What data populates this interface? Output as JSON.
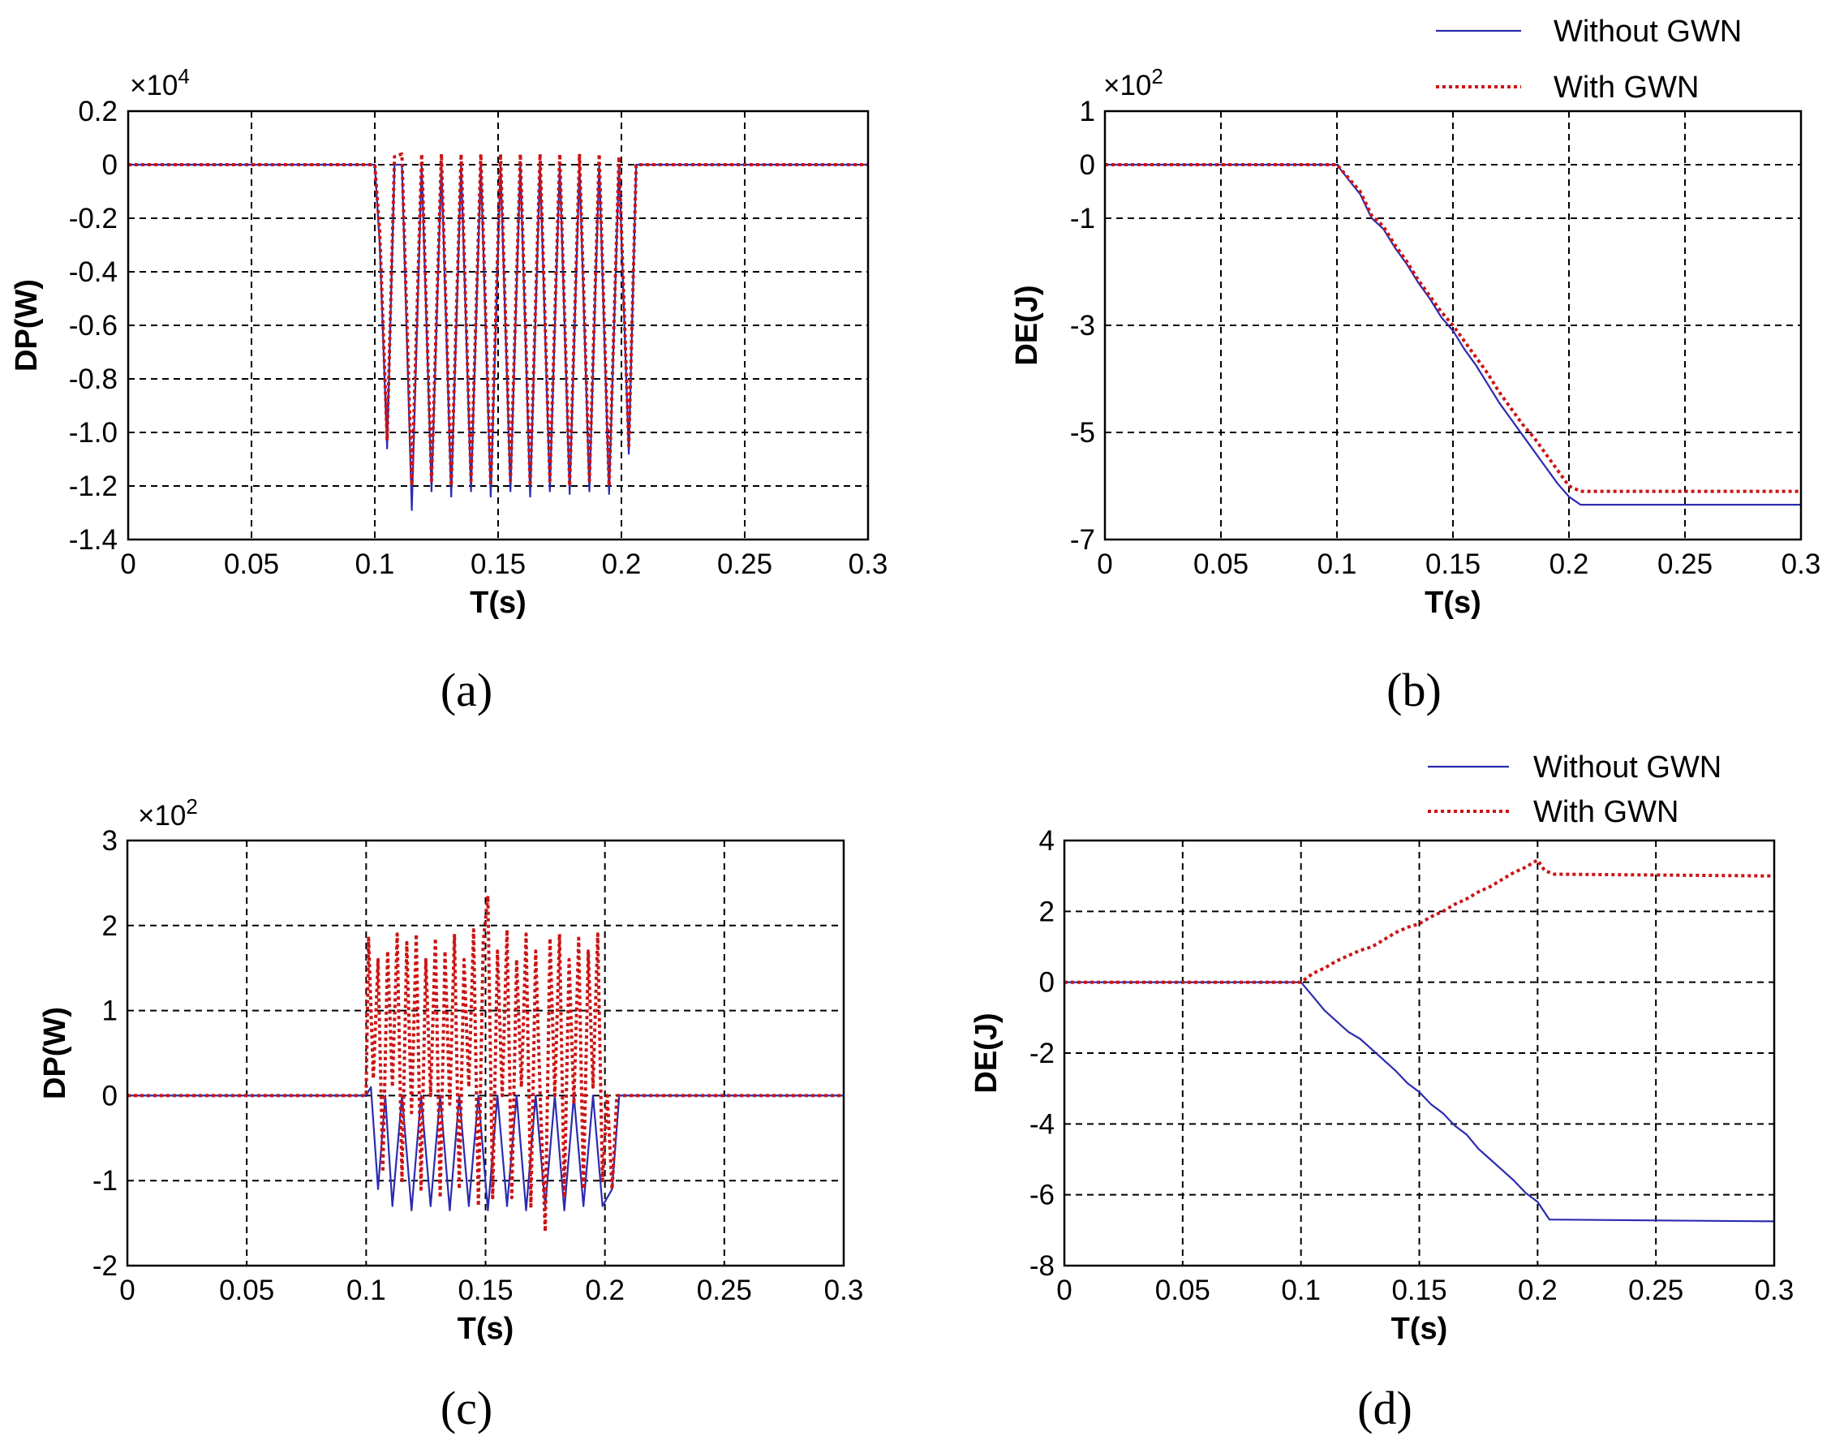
{
  "colors": {
    "without": "#2b2bb0",
    "with": "#cc1414"
  },
  "chart_data": [
    {
      "type": "line",
      "panel": "a",
      "caption": "(a)",
      "xlabel": "T(s)",
      "ylabel": "DP(W)",
      "multiplier": "×10",
      "multiplier_exp": "4",
      "xlim": [
        0,
        0.3
      ],
      "ylim": [
        -1.4,
        0.2
      ],
      "xticks": [
        0,
        0.05,
        0.1,
        0.15,
        0.2,
        0.25,
        0.3
      ],
      "xtick_labels": [
        "0",
        "0.05",
        "0.1",
        "0.15",
        "0.2",
        "0.25",
        "0.3"
      ],
      "yticks": [
        0.2,
        0,
        -0.2,
        -0.4,
        -0.6,
        -0.8,
        -1.0,
        -1.2,
        -1.4
      ],
      "ytick_labels": [
        "0.2",
        "0",
        "-0.2",
        "-0.4",
        "-0.6",
        "-0.8",
        "-1.0",
        "-1.2",
        "-1.4"
      ],
      "legend": null,
      "series": [
        {
          "name": "Without GWN",
          "style": "solid",
          "x": [
            0,
            0.1,
            0.102,
            0.105,
            0.108,
            0.111,
            0.115,
            0.119,
            0.123,
            0.127,
            0.131,
            0.135,
            0.139,
            0.143,
            0.147,
            0.151,
            0.155,
            0.159,
            0.163,
            0.167,
            0.171,
            0.175,
            0.179,
            0.183,
            0.187,
            0.191,
            0.195,
            0.199,
            0.203,
            0.206,
            0.208,
            0.3
          ],
          "y": [
            0,
            0,
            -0.3,
            -1.06,
            0,
            0,
            -1.29,
            0,
            -1.22,
            0,
            -1.24,
            0,
            -1.22,
            0,
            -1.24,
            0,
            -1.22,
            0,
            -1.24,
            0,
            -1.22,
            0,
            -1.23,
            0,
            -1.22,
            0,
            -1.23,
            0,
            -1.08,
            0,
            0,
            0
          ]
        },
        {
          "name": "With GWN",
          "style": "dotted",
          "x": [
            0,
            0.1,
            0.102,
            0.105,
            0.108,
            0.111,
            0.115,
            0.119,
            0.123,
            0.127,
            0.131,
            0.135,
            0.139,
            0.143,
            0.147,
            0.151,
            0.155,
            0.159,
            0.163,
            0.167,
            0.171,
            0.175,
            0.179,
            0.183,
            0.187,
            0.191,
            0.195,
            0.199,
            0.203,
            0.206,
            0.208,
            0.3
          ],
          "y": [
            0,
            0,
            -0.25,
            -1.03,
            0.03,
            0.04,
            -1.2,
            0.04,
            -1.18,
            0.04,
            -1.2,
            0.04,
            -1.18,
            0.04,
            -1.2,
            0.04,
            -1.18,
            0.04,
            -1.2,
            0.04,
            -1.18,
            0.04,
            -1.2,
            0.04,
            -1.18,
            0.04,
            -1.2,
            0.03,
            -1.05,
            0,
            0,
            0
          ]
        }
      ]
    },
    {
      "type": "line",
      "panel": "b",
      "caption": "(b)",
      "xlabel": "T(s)",
      "ylabel": "DE(J)",
      "multiplier": "×10",
      "multiplier_exp": "2",
      "xlim": [
        0,
        0.3
      ],
      "ylim": [
        -7,
        1
      ],
      "xticks": [
        0,
        0.05,
        0.1,
        0.15,
        0.2,
        0.25,
        0.3
      ],
      "xtick_labels": [
        "0",
        "0.05",
        "0.1",
        "0.15",
        "0.2",
        "0.25",
        "0.3"
      ],
      "yticks": [
        1,
        0,
        -1,
        -3,
        -5,
        -7
      ],
      "ytick_labels": [
        "1",
        "0",
        "-1",
        "-3",
        "-5",
        "-7"
      ],
      "legend": [
        "Without GWN",
        "With GWN"
      ],
      "series": [
        {
          "name": "Without GWN",
          "style": "solid",
          "x": [
            0,
            0.1,
            0.105,
            0.11,
            0.115,
            0.12,
            0.125,
            0.13,
            0.135,
            0.14,
            0.145,
            0.15,
            0.155,
            0.16,
            0.165,
            0.17,
            0.175,
            0.18,
            0.185,
            0.19,
            0.195,
            0.2,
            0.205,
            0.3
          ],
          "y": [
            0,
            0,
            -0.28,
            -0.55,
            -1.0,
            -1.2,
            -1.55,
            -1.85,
            -2.2,
            -2.5,
            -2.85,
            -3.1,
            -3.45,
            -3.75,
            -4.1,
            -4.45,
            -4.75,
            -5.05,
            -5.35,
            -5.65,
            -5.95,
            -6.2,
            -6.35,
            -6.35
          ]
        },
        {
          "name": "With GWN",
          "style": "dotted",
          "x": [
            0,
            0.1,
            0.105,
            0.11,
            0.115,
            0.12,
            0.125,
            0.13,
            0.135,
            0.14,
            0.145,
            0.15,
            0.155,
            0.16,
            0.165,
            0.17,
            0.175,
            0.18,
            0.185,
            0.19,
            0.195,
            0.2,
            0.205,
            0.3
          ],
          "y": [
            0,
            0,
            -0.25,
            -0.5,
            -0.95,
            -1.15,
            -1.5,
            -1.8,
            -2.15,
            -2.45,
            -2.75,
            -3.0,
            -3.3,
            -3.6,
            -3.9,
            -4.25,
            -4.55,
            -4.85,
            -5.1,
            -5.4,
            -5.7,
            -6.0,
            -6.1,
            -6.1
          ]
        }
      ]
    },
    {
      "type": "line",
      "panel": "c",
      "caption": "(c)",
      "xlabel": "T(s)",
      "ylabel": "DP(W)",
      "multiplier": "×10",
      "multiplier_exp": "2",
      "xlim": [
        0,
        0.3
      ],
      "ylim": [
        -2,
        3
      ],
      "xticks": [
        0,
        0.05,
        0.1,
        0.15,
        0.2,
        0.25,
        0.3
      ],
      "xtick_labels": [
        "0",
        "0.05",
        "0.1",
        "0.15",
        "0.2",
        "0.25",
        "0.3"
      ],
      "yticks": [
        3,
        2,
        1,
        0,
        -1,
        -2
      ],
      "ytick_labels": [
        "3",
        "2",
        "1",
        "0",
        "-1",
        "-2"
      ],
      "legend": null,
      "series": [
        {
          "name": "Without GWN",
          "style": "solid",
          "x": [
            0,
            0.1,
            0.102,
            0.105,
            0.108,
            0.111,
            0.115,
            0.119,
            0.123,
            0.127,
            0.131,
            0.135,
            0.139,
            0.143,
            0.147,
            0.151,
            0.155,
            0.159,
            0.163,
            0.167,
            0.171,
            0.175,
            0.179,
            0.183,
            0.187,
            0.191,
            0.195,
            0.199,
            0.203,
            0.206,
            0.3
          ],
          "y": [
            0,
            0,
            0.1,
            -1.1,
            0,
            -1.3,
            0,
            -1.35,
            0,
            -1.3,
            0,
            -1.35,
            0,
            -1.3,
            0,
            -1.35,
            0,
            -1.3,
            0,
            -1.35,
            0,
            -1.3,
            0,
            -1.35,
            0,
            -1.3,
            0,
            -1.3,
            -1.1,
            0,
            0
          ]
        },
        {
          "name": "With GWN",
          "style": "dotted",
          "x": [
            0,
            0.1,
            0.101,
            0.103,
            0.105,
            0.107,
            0.109,
            0.111,
            0.113,
            0.115,
            0.117,
            0.119,
            0.121,
            0.123,
            0.125,
            0.127,
            0.129,
            0.131,
            0.133,
            0.135,
            0.137,
            0.139,
            0.141,
            0.143,
            0.145,
            0.147,
            0.149,
            0.151,
            0.153,
            0.155,
            0.157,
            0.159,
            0.161,
            0.163,
            0.165,
            0.167,
            0.169,
            0.171,
            0.173,
            0.175,
            0.177,
            0.179,
            0.181,
            0.183,
            0.185,
            0.187,
            0.189,
            0.191,
            0.193,
            0.195,
            0.197,
            0.199,
            0.201,
            0.203,
            0.205,
            0.3
          ],
          "y": [
            0,
            0,
            1.85,
            0.2,
            1.6,
            -0.9,
            1.7,
            0.1,
            1.9,
            -1.0,
            1.8,
            -0.2,
            1.9,
            -1.1,
            1.6,
            0.0,
            1.85,
            -1.2,
            1.7,
            -0.1,
            1.9,
            -1.1,
            1.6,
            0.1,
            1.95,
            -1.3,
            1.8,
            2.35,
            -1.2,
            1.7,
            0.0,
            1.95,
            -1.2,
            1.6,
            0.1,
            1.9,
            -1.3,
            1.7,
            -0.1,
            -1.6,
            1.85,
            0.0,
            1.9,
            -1.2,
            1.6,
            -0.1,
            1.85,
            -1.1,
            1.7,
            0.1,
            1.9,
            -1.0,
            0.0,
            -1.1,
            0.0,
            0
          ]
        }
      ]
    },
    {
      "type": "line",
      "panel": "d",
      "caption": "(d)",
      "xlabel": "T(s)",
      "ylabel": "DE(J)",
      "multiplier": "",
      "multiplier_exp": "",
      "xlim": [
        0,
        0.3
      ],
      "ylim": [
        -8,
        4
      ],
      "xticks": [
        0,
        0.05,
        0.1,
        0.15,
        0.2,
        0.25,
        0.3
      ],
      "xtick_labels": [
        "0",
        "0.05",
        "0.1",
        "0.15",
        "0.2",
        "0.25",
        "0.3"
      ],
      "yticks": [
        4,
        2,
        0,
        -2,
        -4,
        -6,
        -8
      ],
      "ytick_labels": [
        "4",
        "2",
        "0",
        "-2",
        "-4",
        "-6",
        "-8"
      ],
      "legend": [
        "Without GWN",
        "With GWN"
      ],
      "series": [
        {
          "name": "Without GWN",
          "style": "solid",
          "x": [
            0,
            0.1,
            0.105,
            0.11,
            0.115,
            0.12,
            0.125,
            0.13,
            0.135,
            0.14,
            0.145,
            0.15,
            0.155,
            0.16,
            0.165,
            0.17,
            0.175,
            0.18,
            0.185,
            0.19,
            0.195,
            0.2,
            0.205,
            0.3
          ],
          "y": [
            0,
            0,
            -0.4,
            -0.8,
            -1.1,
            -1.4,
            -1.6,
            -1.9,
            -2.2,
            -2.5,
            -2.85,
            -3.1,
            -3.45,
            -3.7,
            -4.05,
            -4.3,
            -4.7,
            -5.0,
            -5.3,
            -5.6,
            -5.95,
            -6.2,
            -6.7,
            -6.75
          ]
        },
        {
          "name": "With GWN",
          "style": "dotted",
          "x": [
            0,
            0.1,
            0.105,
            0.11,
            0.115,
            0.12,
            0.125,
            0.13,
            0.135,
            0.14,
            0.145,
            0.15,
            0.155,
            0.16,
            0.165,
            0.17,
            0.175,
            0.18,
            0.185,
            0.19,
            0.195,
            0.2,
            0.203,
            0.207,
            0.3
          ],
          "y": [
            0,
            0,
            0.25,
            0.4,
            0.6,
            0.75,
            0.9,
            1.0,
            1.2,
            1.4,
            1.55,
            1.65,
            1.85,
            2.0,
            2.2,
            2.35,
            2.55,
            2.7,
            2.9,
            3.1,
            3.25,
            3.45,
            3.15,
            3.05,
            3.0
          ]
        }
      ]
    }
  ]
}
